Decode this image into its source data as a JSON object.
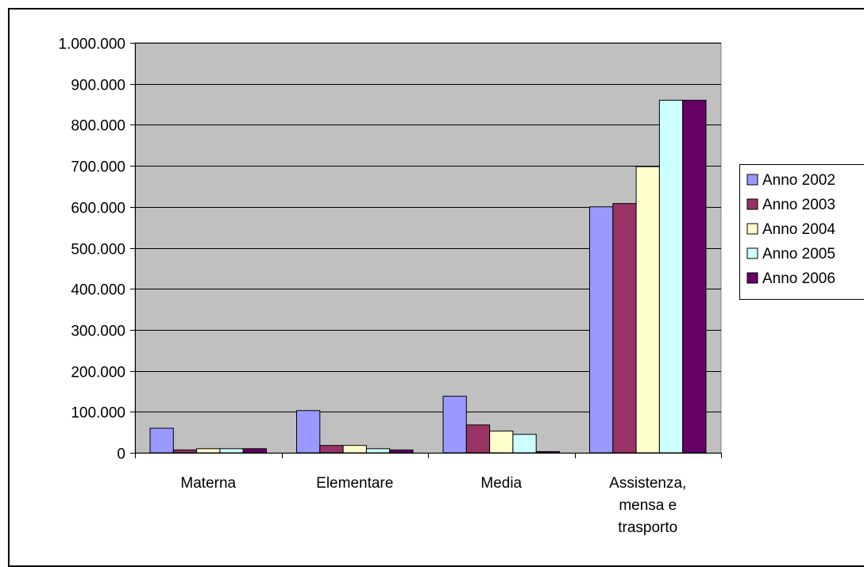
{
  "chart_data": {
    "type": "bar",
    "categories": [
      [
        "Materna"
      ],
      [
        "Elementare"
      ],
      [
        "Media"
      ],
      [
        "Assistenza,",
        "mensa e",
        "trasporto"
      ]
    ],
    "series": [
      {
        "name": "Anno 2002",
        "color": "#9999ff",
        "values": [
          60000,
          103000,
          138000,
          600000
        ]
      },
      {
        "name": "Anno 2003",
        "color": "#993366",
        "values": [
          7000,
          18000,
          68000,
          608000
        ]
      },
      {
        "name": "Anno 2004",
        "color": "#ffffcc",
        "values": [
          10000,
          18000,
          53000,
          698000
        ]
      },
      {
        "name": "Anno 2005",
        "color": "#ccffff",
        "values": [
          10000,
          10000,
          45000,
          860000
        ]
      },
      {
        "name": "Anno 2006",
        "color": "#660066",
        "values": [
          10000,
          7000,
          3000,
          860000
        ]
      }
    ],
    "ylim": [
      0,
      1000000
    ],
    "yticks": [
      {
        "value": 0,
        "label": "0"
      },
      {
        "value": 100000,
        "label": "100.000"
      },
      {
        "value": 200000,
        "label": "200.000"
      },
      {
        "value": 300000,
        "label": "300.000"
      },
      {
        "value": 400000,
        "label": "400.000"
      },
      {
        "value": 500000,
        "label": "500.000"
      },
      {
        "value": 600000,
        "label": "600.000"
      },
      {
        "value": 700000,
        "label": "700.000"
      },
      {
        "value": 800000,
        "label": "800.000"
      },
      {
        "value": 900000,
        "label": "900.000"
      },
      {
        "value": 1000000,
        "label": "1.000.000"
      }
    ],
    "grid": true,
    "plot_background": "#c0c0c0",
    "legend_position": "right"
  }
}
